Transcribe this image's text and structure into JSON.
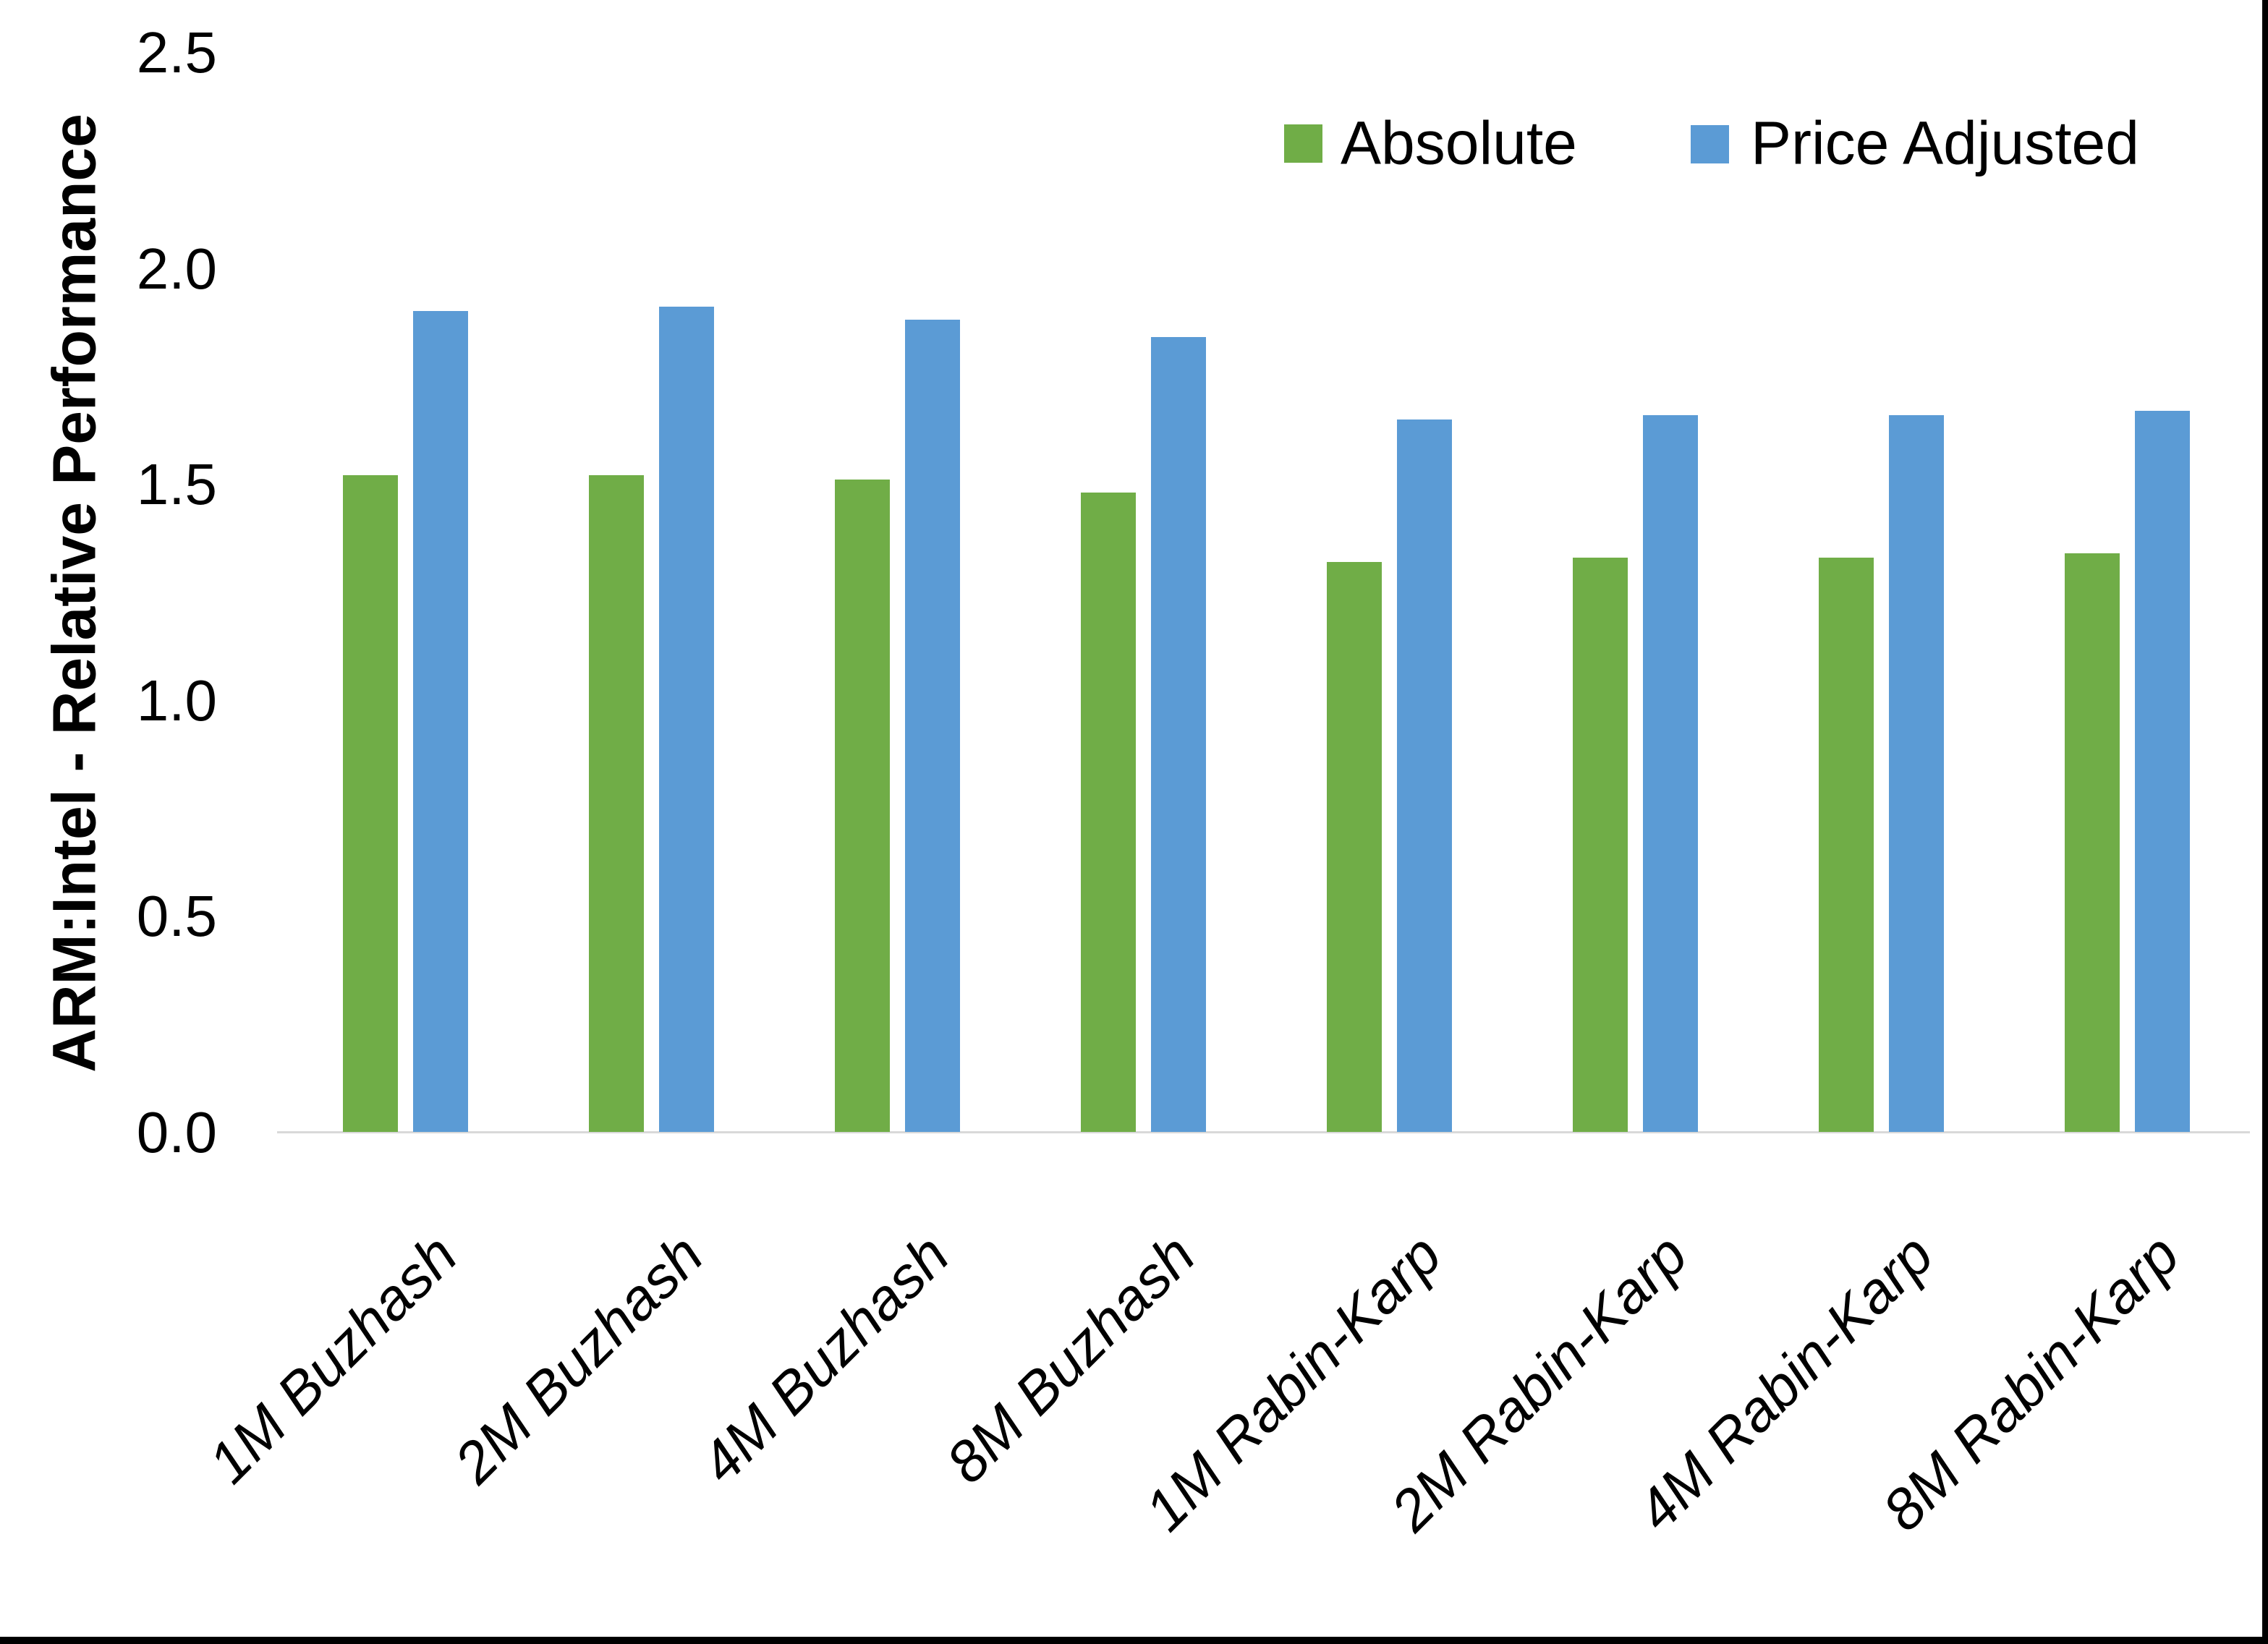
{
  "chart_data": {
    "type": "bar",
    "title": "",
    "categories": [
      "1M Buzhash",
      "2M Buzhash",
      "4M Buzhash",
      "8M Buzhash",
      "1M Rabin-Karp",
      "2M Rabin-Karp",
      "4M Rabin-Karp",
      "8M Rabin-Karp"
    ],
    "series": [
      {
        "name": "Absolute",
        "color": "#70AD47",
        "values": [
          1.52,
          1.52,
          1.51,
          1.48,
          1.32,
          1.33,
          1.33,
          1.34
        ]
      },
      {
        "name": "Price Adjusted",
        "color": "#5B9BD5",
        "values": [
          1.9,
          1.91,
          1.88,
          1.84,
          1.65,
          1.66,
          1.66,
          1.67
        ]
      }
    ],
    "xlabel": "",
    "ylabel": "ARM:Intel - Relative Performance",
    "ylim": [
      0,
      2.5
    ],
    "yticks": [
      "0.0",
      "0.5",
      "1.0",
      "1.5",
      "2.0",
      "2.5"
    ],
    "grid": false,
    "legend_position": "top-right",
    "axis_line_color": "#D9D9D9",
    "frame_border_color": "#000000"
  }
}
